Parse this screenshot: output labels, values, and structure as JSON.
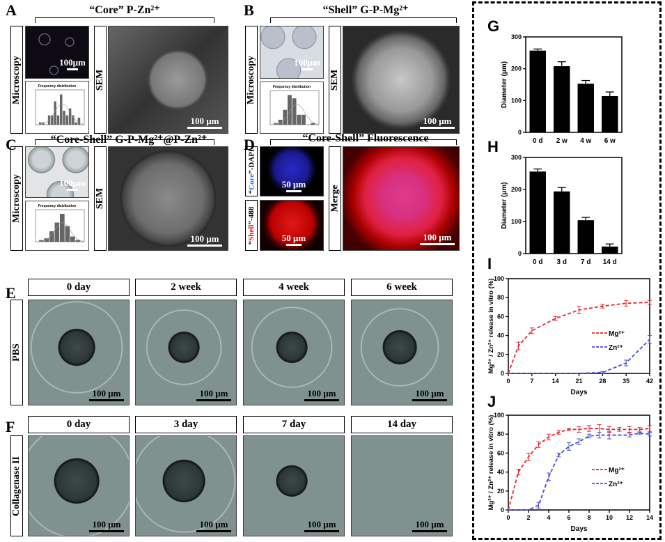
{
  "panels": {
    "A": {
      "letter": "A",
      "title": "“Core” P-Zn²⁺",
      "microscopy": "Microscopy",
      "sem": "SEM",
      "scale_micro": "100μm",
      "scale_sem": "100 μm",
      "hist_title": "Frequency distribution"
    },
    "B": {
      "letter": "B",
      "title": "“Shell” G-P-Mg²⁺",
      "microscopy": "Microscopy",
      "sem": "SEM",
      "scale_micro": "100μm",
      "scale_sem": "100 μm",
      "hist_title": "Frequency distribution"
    },
    "C": {
      "letter": "C",
      "title": "“Core-Shell” G-P-Mg²⁺@P-Zn²⁺",
      "microscopy": "Microscopy",
      "sem": "SEM",
      "scale_micro": "100μm",
      "scale_sem": "100 μm",
      "hist_title": "Frequency distribution"
    },
    "D": {
      "letter": "D",
      "title": "“Core-Shell” Fluorescence",
      "core_pre": "“",
      "core_word": "Core",
      "core_post": "”-DAPI",
      "shell_pre": "“",
      "shell_word": "Shell",
      "shell_post": "”-488",
      "merge": "Merge",
      "scale_small": "50 μm",
      "scale_merge": "100 μm"
    },
    "E": {
      "letter": "E",
      "row_label": "PBS",
      "times": [
        "0 day",
        "2 week",
        "4 week",
        "6 week"
      ],
      "scale": "100 μm"
    },
    "F": {
      "letter": "F",
      "row_label": "Collagenase II",
      "times": [
        "0 day",
        "3 day",
        "7 day",
        "14 day"
      ],
      "scale": "100 μm"
    }
  },
  "chart_data": [
    {
      "id": "G",
      "letter": "G",
      "type": "bar",
      "categories": [
        "0 d",
        "2 w",
        "4 w",
        "6 w"
      ],
      "values": [
        257,
        208,
        153,
        114
      ],
      "errors": [
        5,
        14,
        10,
        13
      ],
      "ylabel": "Diameter (μm)",
      "ylim": [
        0,
        300
      ],
      "yticks": [
        "0",
        "100",
        "200",
        "300"
      ]
    },
    {
      "id": "H",
      "letter": "H",
      "type": "bar",
      "categories": [
        "0 d",
        "3 d",
        "7 d",
        "14 d"
      ],
      "values": [
        256,
        194,
        104,
        22
      ],
      "errors": [
        8,
        12,
        9,
        8
      ],
      "ylabel": "Diameter (μm)",
      "ylim": [
        0,
        300
      ],
      "yticks": [
        "0",
        "100",
        "200",
        "300"
      ]
    },
    {
      "id": "I",
      "letter": "I",
      "type": "line",
      "xlabel": "Days",
      "ylabel": "Mg²⁺ / Zn²⁺ release in vitro (%)",
      "xlim": [
        0,
        42
      ],
      "ylim": [
        0,
        100
      ],
      "xticks": [
        "0",
        "7",
        "14",
        "21",
        "28",
        "35",
        "42"
      ],
      "yticks": [
        "0",
        "20",
        "40",
        "60",
        "80",
        "100"
      ],
      "series": [
        {
          "name": "Mg²⁺",
          "color": "#e8282c",
          "x": [
            0,
            3,
            7,
            14,
            21,
            28,
            35,
            42
          ],
          "y": [
            0,
            29,
            45,
            58,
            67,
            71,
            74,
            75
          ],
          "err": [
            0,
            4,
            3,
            2,
            4,
            2,
            3,
            2
          ]
        },
        {
          "name": "Zn²⁺",
          "color": "#4a4ad8",
          "x": [
            0,
            7,
            14,
            21,
            28,
            35,
            42
          ],
          "y": [
            0,
            0,
            0,
            0,
            1,
            11,
            36
          ],
          "err": [
            0,
            0,
            0,
            0,
            1,
            3,
            4
          ]
        }
      ]
    },
    {
      "id": "J",
      "letter": "J",
      "type": "line",
      "xlabel": "Days",
      "ylabel": "Mg²⁺ / Zn²⁺ release in vitro (%)",
      "xlim": [
        0,
        14
      ],
      "ylim": [
        0,
        100
      ],
      "xticks": [
        "0",
        "2",
        "4",
        "6",
        "8",
        "10",
        "12",
        "14"
      ],
      "yticks": [
        "0",
        "20",
        "40",
        "60",
        "80",
        "100"
      ],
      "series": [
        {
          "name": "Mg²⁺",
          "color": "#e8282c",
          "x": [
            0,
            1,
            2,
            3,
            4,
            5,
            6,
            7,
            8,
            9,
            10,
            11,
            12,
            13,
            14
          ],
          "y": [
            0,
            40,
            56,
            69,
            77,
            82,
            85,
            85,
            86,
            86,
            85,
            85,
            85,
            85,
            86
          ],
          "err": [
            0,
            3,
            4,
            3,
            3,
            2,
            1,
            3,
            3,
            4,
            3,
            2,
            3,
            2,
            3
          ]
        },
        {
          "name": "Zn²⁺",
          "color": "#4a4ad8",
          "x": [
            0,
            1,
            2,
            3,
            4,
            5,
            6,
            7,
            8,
            9,
            10,
            12,
            13,
            14
          ],
          "y": [
            0,
            0,
            0,
            5,
            35,
            58,
            67,
            72,
            78,
            79,
            79,
            79,
            81,
            80
          ],
          "err": [
            0,
            0,
            0,
            3,
            4,
            2,
            4,
            3,
            2,
            3,
            4,
            2,
            1,
            2
          ]
        }
      ]
    },
    {
      "id": "histA",
      "type": "bar",
      "title": "Frequency distribution",
      "values": [
        1,
        1,
        0,
        4,
        4,
        10,
        4,
        13,
        6,
        4,
        7,
        4,
        1,
        3
      ]
    },
    {
      "id": "histB",
      "type": "bar",
      "title": "Frequency distribution",
      "values": [
        1,
        3,
        9,
        18,
        16,
        6,
        6,
        0,
        1
      ]
    },
    {
      "id": "histC",
      "type": "bar",
      "title": "Frequency distribution",
      "values": [
        1,
        2,
        6,
        11,
        16,
        9,
        3,
        1
      ]
    }
  ]
}
